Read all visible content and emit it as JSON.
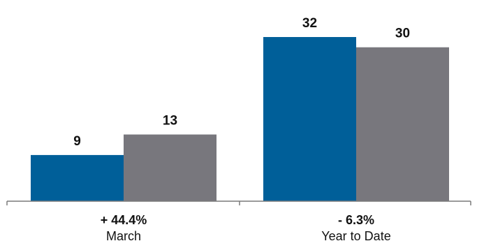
{
  "chart_data": {
    "type": "bar",
    "categories": [
      "March",
      "Year to Date"
    ],
    "category_changes": [
      "+ 44.4%",
      "- 6.3%"
    ],
    "series": [
      {
        "values": [
          9,
          32
        ],
        "color": "#005f99"
      },
      {
        "values": [
          13,
          30
        ],
        "color": "#78777d"
      }
    ],
    "ylim": [
      0,
      32
    ],
    "grid": false,
    "legend": "none",
    "axis_color": "#7a7a7a"
  }
}
